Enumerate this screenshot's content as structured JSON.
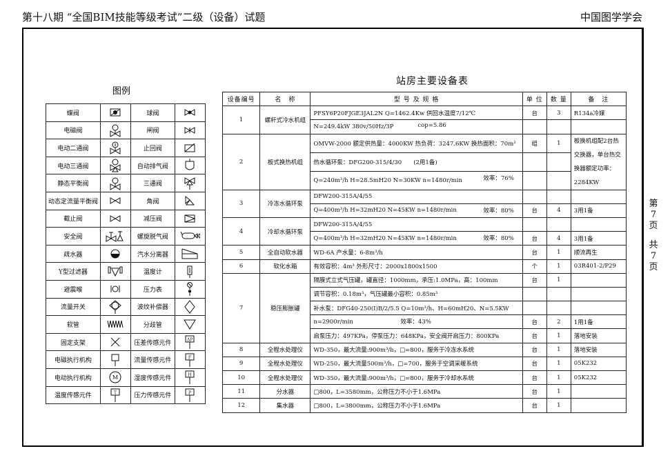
{
  "header": {
    "left": "第十八期 “全国BIM技能等级考试”二级（设备）试题",
    "right": "中国图学学会"
  },
  "side": {
    "page": [
      "第",
      "7",
      "页"
    ],
    "total": [
      "共",
      "7",
      "页"
    ]
  },
  "legend": {
    "title": "图例",
    "rows": [
      [
        {
          "label": "蝶阀",
          "icon": "butterfly-valve"
        },
        {
          "label": "球阀",
          "icon": "ball-valve"
        }
      ],
      [
        {
          "label": "电磁阀",
          "icon": "solenoid-valve"
        },
        {
          "label": "闸阀",
          "icon": "gate-valve"
        }
      ],
      [
        {
          "label": "电动二通阀",
          "icon": "motorized-two-way-valve"
        },
        {
          "label": "止回阀",
          "icon": "check-valve"
        }
      ],
      [
        {
          "label": "电动三通阀",
          "icon": "motorized-three-way-valve"
        },
        {
          "label": "自动排气阀",
          "icon": "auto-air-vent"
        }
      ],
      [
        {
          "label": "静态平衡阀",
          "icon": "static-balance-valve"
        },
        {
          "label": "三通阀",
          "icon": "three-way-valve"
        }
      ],
      [
        {
          "label": "动态定流量平衡阀",
          "icon": "dynamic-balance-valve"
        },
        {
          "label": "角阀",
          "icon": "angle-valve"
        }
      ],
      [
        {
          "label": "截止阀",
          "icon": "globe-valve"
        },
        {
          "label": "减压阀",
          "icon": "pressure-reducing-valve"
        }
      ],
      [
        {
          "label": "安全阀",
          "icon": "safety-valve"
        },
        {
          "label": "螺旋脱气阀",
          "icon": "spiral-deaerator"
        }
      ],
      [
        {
          "label": "疏水器",
          "icon": "steam-trap"
        },
        {
          "label": "汽水分离器",
          "icon": "steam-water-separator"
        }
      ],
      [
        {
          "label": "Y型过滤器",
          "icon": "y-strainer"
        },
        {
          "label": "温度计",
          "icon": "thermometer"
        }
      ],
      [
        {
          "label": "避震喉",
          "icon": "flexible-joint"
        },
        {
          "label": "压力表",
          "icon": "pressure-gauge"
        }
      ],
      [
        {
          "label": "流量开关",
          "icon": "flow-switch"
        },
        {
          "label": "波纹补偿器",
          "icon": "bellows-compensator"
        }
      ],
      [
        {
          "label": "软管",
          "icon": "hose"
        },
        {
          "label": "分歧管",
          "icon": "branch-pipe"
        }
      ],
      [
        {
          "label": "固定支架",
          "icon": "fixed-support"
        },
        {
          "label": "压差传感元件",
          "icon": "dp-sensor",
          "tag": "ΔP"
        }
      ],
      [
        {
          "label": "电磁执行机构",
          "icon": "solenoid-actuator"
        },
        {
          "label": "流量传感元件",
          "icon": "flow-sensor",
          "tag": "F"
        }
      ],
      [
        {
          "label": "电动执行机构",
          "icon": "motor-actuator",
          "tag": "M"
        },
        {
          "label": "湿度传感元件",
          "icon": "humidity-sensor",
          "tag": "H"
        }
      ],
      [
        {
          "label": "温度传感元件",
          "icon": "temperature-sensor",
          "tag": "T"
        },
        {
          "label": "压力传感元件",
          "icon": "pressure-sensor",
          "tag": "P"
        }
      ]
    ]
  },
  "equipment": {
    "title": "站房主要设备表",
    "headers": [
      "设备编号",
      "名　称",
      "型 号 及 规 格",
      "单 位",
      "数 量",
      "备　注"
    ],
    "items": [
      {
        "no": "1",
        "name": "螺杆式冷水机组",
        "lines": [
          {
            "text": "PFSY6P20FJGE3JAL2N  Q=1462.4Kw  供回水温度7/12℃",
            "unit": "台",
            "qty": "3",
            "note": "R134a冷媒"
          },
          {
            "text": "N=249.4kW  380v/50Hz/3P",
            "right": "cop=5.86",
            "unit": "",
            "qty": "",
            "note": ""
          }
        ]
      },
      {
        "no": "2",
        "name": "板式换热机组",
        "note": "板换机组配2台热交换器，单台热交换器额定功率：2284KW",
        "lines": [
          {
            "text": "OMVW-2000 额定供热量：4000KW  热负荷：3247.6KW  换热面积：70m²",
            "unit": "组",
            "qty": "1"
          },
          {
            "text": "热水循环泵：DFG200-315/4/30　　(2用1备)",
            "unit": "",
            "qty": ""
          },
          {
            "text": "Q=240m³/h H=28.5mH20  N=30KW  n=1480r/min",
            "right": "效率：76%",
            "unit": "",
            "qty": ""
          }
        ]
      },
      {
        "no": "3",
        "name": "冷冻水循环泵",
        "lines": [
          {
            "text": "DFW200-315A/4/55",
            "unit": "",
            "qty": "",
            "note": ""
          },
          {
            "text": "Q=400m³/h  H=32mH20  N=45KW  n=1480r/min",
            "right": "效率：80%",
            "unit": "台",
            "qty": "4",
            "note": "3用1备"
          }
        ]
      },
      {
        "no": "4",
        "name": "冷却水循环泵",
        "lines": [
          {
            "text": "DFW200-315A/4/55",
            "unit": "",
            "qty": "",
            "note": ""
          },
          {
            "text": "Q=400m³/h  H=32mH20  N=45KW  n=1480r/min",
            "right": "效率：80%",
            "unit": "台",
            "qty": "4",
            "note": "3用1备"
          }
        ]
      },
      {
        "no": "5",
        "name": "全自动软水器",
        "lines": [
          {
            "text": "WD-6A  产水量：6-8m³/h",
            "unit": "台",
            "qty": "1",
            "note": "顺流再生"
          }
        ]
      },
      {
        "no": "6",
        "name": "软化水箱",
        "lines": [
          {
            "text": "有效容积：4m³  外形尺寸：2000x1800x1500",
            "unit": "个",
            "qty": "1",
            "note": "03R401-2/P29"
          }
        ]
      },
      {
        "no": "7",
        "name": "稳压膨胀罐",
        "lines": [
          {
            "text": "隔膜式立式气压罐，罐直径：1000mm，承压:1.0MPa，高：100mm",
            "unit": "台",
            "qty": "1",
            "note": ""
          },
          {
            "text": "调节容积：0.18m³，气压罐最小容积：0.85m³",
            "unit": "",
            "qty": "",
            "note": ""
          },
          {
            "text": "补水泵：DFG40-250(I)B/2/5.5  Q=10m³/h、H=60mH20、N=5.5KW",
            "unit": "",
            "qty": "",
            "note": ""
          },
          {
            "text": "n=2900r/min",
            "mid": "效率：43%",
            "unit": "台",
            "qty": "2",
            "note": "1用1备"
          },
          {
            "text": "启泵压力：497KPa，停泵压力：648KPa，安全阀开启压力：800KPa",
            "unit": "台",
            "qty": "1",
            "note": "落地安装"
          }
        ]
      },
      {
        "no": "8",
        "name": "全程水处理仪",
        "lines": [
          {
            "text": "WD-350，最大流量:900m³/h，□=800，服务于冷冻水系统",
            "unit": "台",
            "qty": "1",
            "note": "落地安装"
          }
        ]
      },
      {
        "no": "9",
        "name": "全程水处理仪",
        "lines": [
          {
            "text": "WD-250，最大流量500m³/h，□=700，服务于空调采暖系统",
            "unit": "台",
            "qty": "1",
            "note": "05K232"
          }
        ]
      },
      {
        "no": "10",
        "name": "全程水处理仪",
        "lines": [
          {
            "text": "WD-350，最大流量:900m³/h，□=800，服务于冷却水系统",
            "unit": "台",
            "qty": "1",
            "note": "05K232"
          }
        ]
      },
      {
        "no": "11",
        "name": "分水器",
        "lines": [
          {
            "text": "□800，L=3580mm，公称压力不小于1.6MPa",
            "unit": "台",
            "qty": "1",
            "note": ""
          }
        ]
      },
      {
        "no": "12",
        "name": "集水器",
        "lines": [
          {
            "text": "□800，L=3800mm，公称压力不小于1.6MPa",
            "unit": "台",
            "qty": "1",
            "note": ""
          }
        ]
      }
    ]
  }
}
